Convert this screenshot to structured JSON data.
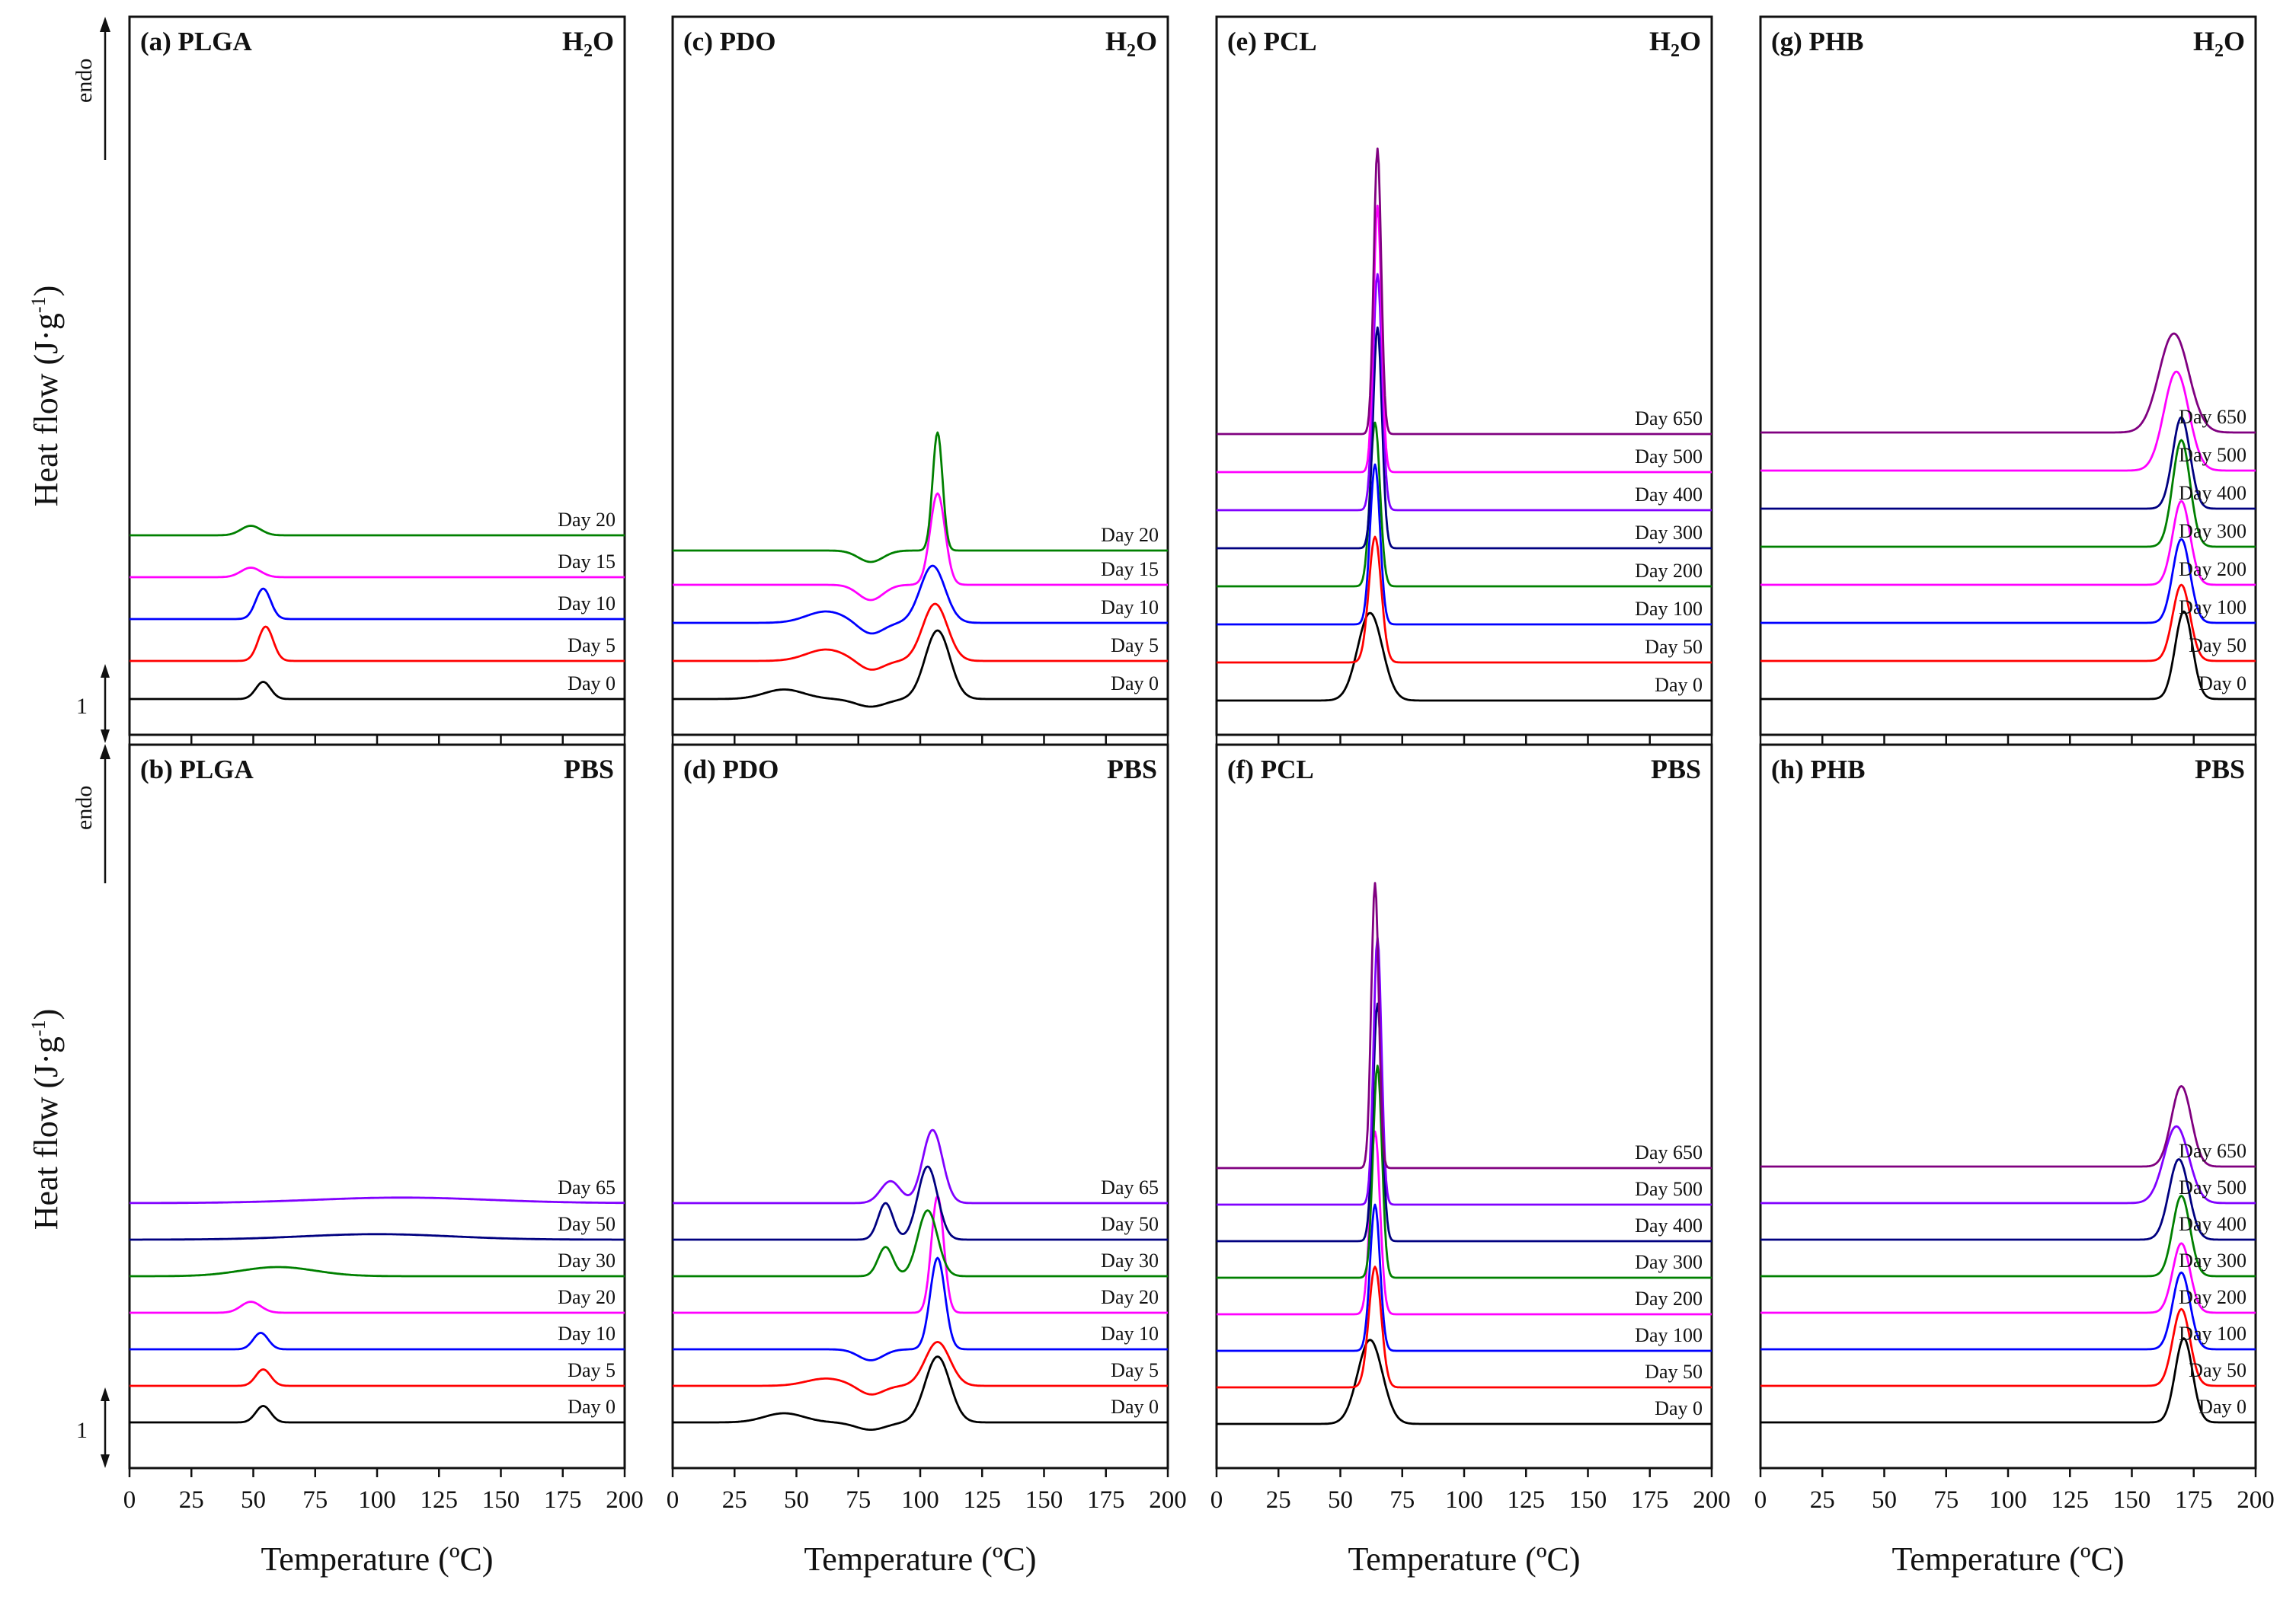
{
  "figure": {
    "xlabel": "Temperature (ºC)",
    "ylabel": "Heat flow (J·g",
    "ylabel_sup": "-1",
    "ylabel_close": ")",
    "endo_label": "endo",
    "scale_label": "1"
  },
  "chart_data": [
    {
      "id": "a",
      "type": "line",
      "panel": "(a)",
      "polymer": "PLGA",
      "medium": "H2O",
      "xlabel": "Temperature (ºC)",
      "ylabel": "Heat flow (J·g-1)",
      "xlim": [
        0,
        200
      ],
      "xticks": [
        0,
        25,
        50,
        75,
        100,
        125,
        150,
        175,
        200
      ],
      "series": [
        {
          "name": "Day 0",
          "color": "#000000",
          "offset": 0.0,
          "features": [
            {
              "t": 54,
              "h": 0.45,
              "w": 3
            }
          ]
        },
        {
          "name": "Day 5",
          "color": "#ff0000",
          "offset": 1.0,
          "features": [
            {
              "t": 55,
              "h": 0.9,
              "w": 3
            }
          ]
        },
        {
          "name": "Day 10",
          "color": "#0000ff",
          "offset": 2.1,
          "features": [
            {
              "t": 54,
              "h": 0.8,
              "w": 3
            }
          ]
        },
        {
          "name": "Day 15",
          "color": "#ff00ff",
          "offset": 3.2,
          "features": [
            {
              "t": 49,
              "h": 0.25,
              "w": 4
            }
          ]
        },
        {
          "name": "Day 20",
          "color": "#008000",
          "offset": 4.3,
          "features": [
            {
              "t": 49,
              "h": 0.25,
              "w": 4
            }
          ]
        }
      ]
    },
    {
      "id": "c",
      "type": "line",
      "panel": "(c)",
      "polymer": "PDO",
      "medium": "H2O",
      "xlabel": "Temperature (ºC)",
      "ylabel": "Heat flow (J·g-1)",
      "xlim": [
        0,
        200
      ],
      "xticks": [
        0,
        25,
        50,
        75,
        100,
        125,
        150,
        175,
        200
      ],
      "series": [
        {
          "name": "Day 0",
          "color": "#000000",
          "offset": 0.0,
          "features": [
            {
              "t": 45,
              "h": 0.25,
              "w": 8
            },
            {
              "t": 80,
              "h": -0.2,
              "w": 6
            },
            {
              "t": 107,
              "h": 1.8,
              "w": 5
            }
          ]
        },
        {
          "name": "Day 5",
          "color": "#ff0000",
          "offset": 1.0,
          "features": [
            {
              "t": 62,
              "h": 0.3,
              "w": 8
            },
            {
              "t": 80,
              "h": -0.25,
              "w": 5
            },
            {
              "t": 106,
              "h": 1.5,
              "w": 5
            }
          ]
        },
        {
          "name": "Day 10",
          "color": "#0000ff",
          "offset": 2.0,
          "features": [
            {
              "t": 62,
              "h": 0.3,
              "w": 8
            },
            {
              "t": 80,
              "h": -0.3,
              "w": 5
            },
            {
              "t": 105,
              "h": 1.5,
              "w": 5
            }
          ]
        },
        {
          "name": "Day 15",
          "color": "#ff00ff",
          "offset": 3.0,
          "features": [
            {
              "t": 80,
              "h": -0.4,
              "w": 5
            },
            {
              "t": 107,
              "h": 2.4,
              "w": 3
            }
          ]
        },
        {
          "name": "Day 20",
          "color": "#008000",
          "offset": 3.9,
          "features": [
            {
              "t": 80,
              "h": -0.3,
              "w": 5
            },
            {
              "t": 107,
              "h": 3.1,
              "w": 2
            }
          ]
        }
      ]
    },
    {
      "id": "e",
      "type": "line",
      "panel": "(e)",
      "polymer": "PCL",
      "medium": "H2O",
      "xlabel": "Temperature (ºC)",
      "ylabel": "Heat flow (J·g-1)",
      "xlim": [
        0,
        200
      ],
      "xticks": [
        0,
        25,
        50,
        75,
        100,
        125,
        150,
        175,
        200
      ],
      "series": [
        {
          "name": "Day 0",
          "color": "#000000",
          "offset": 0.0,
          "features": [
            {
              "t": 62,
              "h": 2.3,
              "w": 5
            }
          ]
        },
        {
          "name": "Day 50",
          "color": "#ff0000",
          "offset": 1.0,
          "features": [
            {
              "t": 64,
              "h": 3.3,
              "w": 2.5
            }
          ]
        },
        {
          "name": "Day 100",
          "color": "#0000ff",
          "offset": 2.0,
          "features": [
            {
              "t": 64,
              "h": 4.2,
              "w": 2
            }
          ]
        },
        {
          "name": "Day 200",
          "color": "#008000",
          "offset": 3.0,
          "features": [
            {
              "t": 64,
              "h": 4.3,
              "w": 2
            }
          ]
        },
        {
          "name": "Day 300",
          "color": "#000080",
          "offset": 4.0,
          "features": [
            {
              "t": 65,
              "h": 5.8,
              "w": 1.8
            }
          ]
        },
        {
          "name": "Day 400",
          "color": "#8000ff",
          "offset": 5.0,
          "features": [
            {
              "t": 65,
              "h": 6.2,
              "w": 1.8
            }
          ]
        },
        {
          "name": "Day 500",
          "color": "#ff00ff",
          "offset": 6.0,
          "features": [
            {
              "t": 65,
              "h": 7.0,
              "w": 1.6
            }
          ]
        },
        {
          "name": "Day 650",
          "color": "#800080",
          "offset": 7.0,
          "features": [
            {
              "t": 65,
              "h": 7.5,
              "w": 1.5
            }
          ]
        }
      ]
    },
    {
      "id": "g",
      "type": "line",
      "panel": "(g)",
      "polymer": "PHB",
      "medium": "H2O",
      "xlabel": "Temperature (ºC)",
      "ylabel": "Heat flow (J·g-1)",
      "xlim": [
        0,
        200
      ],
      "xticks": [
        0,
        25,
        50,
        75,
        100,
        125,
        150,
        175,
        200
      ],
      "series": [
        {
          "name": "Day 0",
          "color": "#000000",
          "offset": 0.0,
          "features": [
            {
              "t": 171,
              "h": 2.3,
              "w": 3.5
            }
          ]
        },
        {
          "name": "Day 50",
          "color": "#ff0000",
          "offset": 1.0,
          "features": [
            {
              "t": 170,
              "h": 2.0,
              "w": 3.5
            }
          ]
        },
        {
          "name": "Day 100",
          "color": "#0000ff",
          "offset": 2.0,
          "features": [
            {
              "t": 170,
              "h": 2.2,
              "w": 3.5
            }
          ]
        },
        {
          "name": "Day 200",
          "color": "#ff00ff",
          "offset": 3.0,
          "features": [
            {
              "t": 170,
              "h": 2.2,
              "w": 3.5
            }
          ]
        },
        {
          "name": "Day 300",
          "color": "#008000",
          "offset": 4.0,
          "features": [
            {
              "t": 170,
              "h": 2.8,
              "w": 3.5
            }
          ]
        },
        {
          "name": "Day 400",
          "color": "#000080",
          "offset": 5.0,
          "features": [
            {
              "t": 170,
              "h": 2.4,
              "w": 3.5
            }
          ]
        },
        {
          "name": "Day 500",
          "color": "#ff00ff",
          "offset": 6.0,
          "features": [
            {
              "t": 168,
              "h": 2.6,
              "w": 5
            }
          ]
        },
        {
          "name": "Day 650",
          "color": "#800080",
          "offset": 7.0,
          "features": [
            {
              "t": 167,
              "h": 2.6,
              "w": 6
            }
          ]
        }
      ]
    },
    {
      "id": "b",
      "type": "line",
      "panel": "(b)",
      "polymer": "PLGA",
      "medium": "PBS",
      "xlabel": "Temperature (ºC)",
      "ylabel": "Heat flow (J·g-1)",
      "xlim": [
        0,
        200
      ],
      "xticks": [
        0,
        25,
        50,
        75,
        100,
        125,
        150,
        175,
        200
      ],
      "series": [
        {
          "name": "Day 0",
          "color": "#000000",
          "offset": 0.0,
          "features": [
            {
              "t": 54,
              "h": 0.45,
              "w": 3
            }
          ]
        },
        {
          "name": "Day 5",
          "color": "#ff0000",
          "offset": 1.0,
          "features": [
            {
              "t": 54,
              "h": 0.45,
              "w": 3
            }
          ]
        },
        {
          "name": "Day 10",
          "color": "#0000ff",
          "offset": 2.0,
          "features": [
            {
              "t": 53,
              "h": 0.45,
              "w": 3
            }
          ]
        },
        {
          "name": "Day 20",
          "color": "#ff00ff",
          "offset": 3.0,
          "features": [
            {
              "t": 49,
              "h": 0.3,
              "w": 4
            }
          ]
        },
        {
          "name": "Day 30",
          "color": "#008000",
          "offset": 4.0,
          "features": [
            {
              "t": 60,
              "h": 0.25,
              "w": 15
            }
          ]
        },
        {
          "name": "Day 50",
          "color": "#000080",
          "offset": 5.0,
          "features": [
            {
              "t": 100,
              "h": 0.15,
              "w": 30
            }
          ]
        },
        {
          "name": "Day 65",
          "color": "#8000ff",
          "offset": 6.0,
          "features": [
            {
              "t": 110,
              "h": 0.15,
              "w": 35
            }
          ]
        }
      ]
    },
    {
      "id": "d",
      "type": "line",
      "panel": "(d)",
      "polymer": "PDO",
      "medium": "PBS",
      "xlabel": "Temperature (ºC)",
      "ylabel": "Heat flow (J·g-1)",
      "xlim": [
        0,
        200
      ],
      "xticks": [
        0,
        25,
        50,
        75,
        100,
        125,
        150,
        175,
        200
      ],
      "series": [
        {
          "name": "Day 0",
          "color": "#000000",
          "offset": 0.0,
          "features": [
            {
              "t": 45,
              "h": 0.25,
              "w": 8
            },
            {
              "t": 80,
              "h": -0.2,
              "w": 6
            },
            {
              "t": 107,
              "h": 1.8,
              "w": 5
            }
          ]
        },
        {
          "name": "Day 5",
          "color": "#ff0000",
          "offset": 1.0,
          "features": [
            {
              "t": 62,
              "h": 0.2,
              "w": 8
            },
            {
              "t": 80,
              "h": -0.25,
              "w": 5
            },
            {
              "t": 107,
              "h": 1.2,
              "w": 5
            }
          ]
        },
        {
          "name": "Day 10",
          "color": "#0000ff",
          "offset": 2.0,
          "features": [
            {
              "t": 80,
              "h": -0.3,
              "w": 5
            },
            {
              "t": 107,
              "h": 2.5,
              "w": 3
            }
          ]
        },
        {
          "name": "Day 20",
          "color": "#ff00ff",
          "offset": 3.0,
          "features": [
            {
              "t": 107,
              "h": 3.2,
              "w": 2.5
            }
          ]
        },
        {
          "name": "Day 30",
          "color": "#008000",
          "offset": 4.0,
          "features": [
            {
              "t": 86,
              "h": 0.8,
              "w": 3
            },
            {
              "t": 103,
              "h": 1.8,
              "w": 4
            }
          ]
        },
        {
          "name": "Day 50",
          "color": "#000080",
          "offset": 5.0,
          "features": [
            {
              "t": 86,
              "h": 1.0,
              "w": 3
            },
            {
              "t": 103,
              "h": 2.0,
              "w": 4
            }
          ]
        },
        {
          "name": "Day 65",
          "color": "#8000ff",
          "offset": 6.0,
          "features": [
            {
              "t": 88,
              "h": 0.6,
              "w": 4
            },
            {
              "t": 105,
              "h": 2.0,
              "w": 4
            }
          ]
        }
      ]
    },
    {
      "id": "f",
      "type": "line",
      "panel": "(f)",
      "polymer": "PCL",
      "medium": "PBS",
      "xlabel": "Temperature (ºC)",
      "ylabel": "Heat flow (J·g-1)",
      "xlim": [
        0,
        200
      ],
      "xticks": [
        0,
        25,
        50,
        75,
        100,
        125,
        150,
        175,
        200
      ],
      "series": [
        {
          "name": "Day 0",
          "color": "#000000",
          "offset": 0.0,
          "features": [
            {
              "t": 62,
              "h": 2.3,
              "w": 5
            }
          ]
        },
        {
          "name": "Day 50",
          "color": "#ff0000",
          "offset": 1.0,
          "features": [
            {
              "t": 64,
              "h": 3.3,
              "w": 2.5
            }
          ]
        },
        {
          "name": "Day 100",
          "color": "#0000ff",
          "offset": 2.0,
          "features": [
            {
              "t": 64,
              "h": 4.0,
              "w": 2
            }
          ]
        },
        {
          "name": "Day 200",
          "color": "#ff00ff",
          "offset": 3.0,
          "features": [
            {
              "t": 64,
              "h": 5.0,
              "w": 2
            }
          ]
        },
        {
          "name": "Day 300",
          "color": "#008000",
          "offset": 4.0,
          "features": [
            {
              "t": 65,
              "h": 5.8,
              "w": 1.8
            }
          ]
        },
        {
          "name": "Day 400",
          "color": "#000080",
          "offset": 5.0,
          "features": [
            {
              "t": 65,
              "h": 6.5,
              "w": 1.8
            }
          ]
        },
        {
          "name": "Day 500",
          "color": "#8000ff",
          "offset": 6.0,
          "features": [
            {
              "t": 65,
              "h": 7.3,
              "w": 1.6
            }
          ]
        },
        {
          "name": "Day 650",
          "color": "#800080",
          "offset": 7.0,
          "features": [
            {
              "t": 64,
              "h": 7.8,
              "w": 1.5
            }
          ]
        }
      ]
    },
    {
      "id": "h",
      "type": "line",
      "panel": "(h)",
      "polymer": "PHB",
      "medium": "PBS",
      "xlabel": "Temperature (ºC)",
      "ylabel": "Heat flow (J·g-1)",
      "xlim": [
        0,
        200
      ],
      "xticks": [
        0,
        25,
        50,
        75,
        100,
        125,
        150,
        175,
        200
      ],
      "series": [
        {
          "name": "Day 0",
          "color": "#000000",
          "offset": 0.0,
          "features": [
            {
              "t": 171,
              "h": 2.3,
              "w": 3.5
            }
          ]
        },
        {
          "name": "Day 50",
          "color": "#ff0000",
          "offset": 1.0,
          "features": [
            {
              "t": 170,
              "h": 2.1,
              "w": 3.5
            }
          ]
        },
        {
          "name": "Day 100",
          "color": "#0000ff",
          "offset": 2.0,
          "features": [
            {
              "t": 170,
              "h": 2.1,
              "w": 3.5
            }
          ]
        },
        {
          "name": "Day 200",
          "color": "#ff00ff",
          "offset": 3.0,
          "features": [
            {
              "t": 170,
              "h": 1.9,
              "w": 3.5
            }
          ]
        },
        {
          "name": "Day 300",
          "color": "#008000",
          "offset": 4.0,
          "features": [
            {
              "t": 170,
              "h": 2.2,
              "w": 3.5
            }
          ]
        },
        {
          "name": "Day 400",
          "color": "#000080",
          "offset": 5.0,
          "features": [
            {
              "t": 169,
              "h": 2.2,
              "w": 4
            }
          ]
        },
        {
          "name": "Day 500",
          "color": "#8000ff",
          "offset": 6.0,
          "features": [
            {
              "t": 168,
              "h": 2.1,
              "w": 5
            }
          ]
        },
        {
          "name": "Day 650",
          "color": "#800080",
          "offset": 7.0,
          "features": [
            {
              "t": 170,
              "h": 2.2,
              "w": 4
            }
          ]
        }
      ]
    }
  ]
}
